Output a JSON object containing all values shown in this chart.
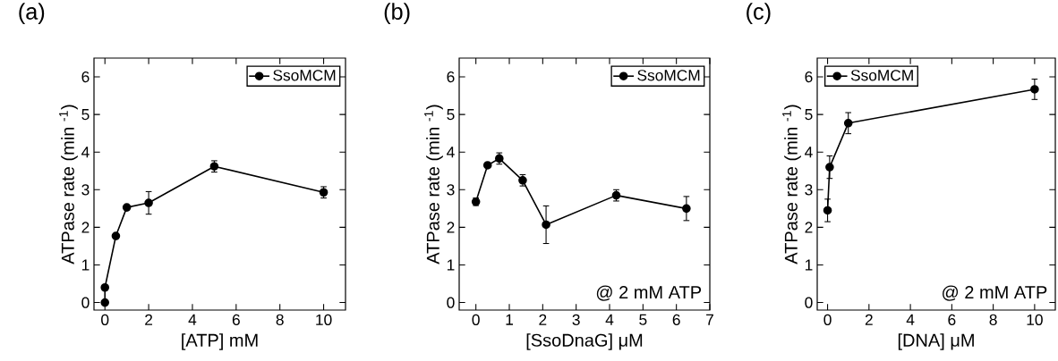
{
  "chart_data": [
    {
      "type": "line",
      "title": "(a)",
      "xlabel": "[ATP] mM",
      "ylabel": "ATPase rate (min $^{-1}$)",
      "xlim": [
        -0.5,
        11
      ],
      "ylim": [
        -0.2,
        6.5
      ],
      "xticks": [
        0,
        2,
        4,
        6,
        8,
        10
      ],
      "yticks": [
        0,
        1,
        2,
        3,
        4,
        5,
        6
      ],
      "legend": "top right",
      "marker": "circle",
      "line_style": "solid",
      "grid": false,
      "x": [
        0,
        0,
        0.5,
        1,
        2,
        5,
        10
      ],
      "series": [
        {
          "name": "SsoMCM",
          "color": "#000000",
          "values": [
            0,
            0.4,
            1.77,
            2.53,
            2.65,
            3.62,
            2.93
          ],
          "errors": [
            null,
            null,
            null,
            null,
            0.3,
            0.15,
            0.15
          ]
        }
      ]
    },
    {
      "type": "line",
      "title": "(b)",
      "xlabel": "[SsoDnaG] μM",
      "ylabel": "ATPase rate (min $^{-1}$)",
      "xlim": [
        -0.5,
        7
      ],
      "ylim": [
        -0.2,
        6.5
      ],
      "xticks": [
        0,
        1,
        2,
        3,
        4,
        5,
        6,
        7
      ],
      "yticks": [
        0,
        1,
        2,
        3,
        4,
        5,
        6
      ],
      "legend": "top right",
      "marker": "circle",
      "line_style": "solid",
      "grid": false,
      "annotations": [
        "@ 2 mM ATP"
      ],
      "x": [
        0,
        0.35,
        0.7,
        1.4,
        2.1,
        4.2,
        6.3
      ],
      "series": [
        {
          "name": "SsoMCM",
          "color": "#000000",
          "values": [
            2.68,
            3.65,
            3.83,
            3.25,
            2.07,
            2.85,
            2.5
          ],
          "errors": [
            0.1,
            0.05,
            0.15,
            0.15,
            0.5,
            0.15,
            0.32
          ]
        }
      ]
    },
    {
      "type": "line",
      "title": "(c)",
      "xlabel": "[DNA] μM",
      "ylabel": "ATPase rate (min $^{-1}$)",
      "xlim": [
        -0.5,
        11
      ],
      "ylim": [
        -0.2,
        6.5
      ],
      "xticks": [
        0,
        2,
        4,
        6,
        8,
        10
      ],
      "yticks": [
        0,
        1,
        2,
        3,
        4,
        5,
        6
      ],
      "legend": "top left",
      "marker": "circle",
      "line_style": "solid",
      "grid": false,
      "annotations": [
        "@ 2 mM ATP"
      ],
      "x": [
        0,
        0.1,
        1,
        10
      ],
      "series": [
        {
          "name": "SsoMCM",
          "color": "#000000",
          "values": [
            2.45,
            3.6,
            4.77,
            5.67
          ],
          "errors": [
            0.3,
            0.3,
            0.28,
            0.27
          ]
        }
      ]
    }
  ]
}
